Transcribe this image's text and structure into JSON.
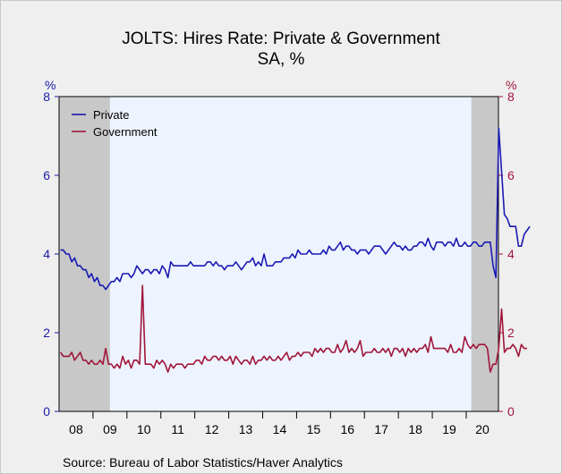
{
  "chart_data": {
    "type": "line",
    "title": "JOLTS: Hires Rate: Private & Government",
    "subtitle": "SA, %",
    "source": "Source:  Bureau of Labor Statistics/Haver Analytics",
    "ylabel_left": "%",
    "ylabel_right": "%",
    "ylim": [
      0,
      8
    ],
    "yticks": [
      "0",
      "2",
      "4",
      "6",
      "8"
    ],
    "x_tick_labels": [
      "08",
      "09",
      "10",
      "11",
      "12",
      "13",
      "14",
      "15",
      "16",
      "17",
      "18",
      "19",
      "20"
    ],
    "x_start_year": 2008,
    "x_end": 2020.95,
    "recessions": [
      [
        2008.0,
        2009.5
      ],
      [
        2020.15,
        2020.95
      ]
    ],
    "legend_position": "top-left",
    "colors": {
      "private": "#1a1ab4",
      "government": "#a0163a",
      "recession": "#c8c8c8",
      "plot_bg": "#eef4ff"
    },
    "series": [
      {
        "name": "Private",
        "color": "#1a1ab4",
        "values": [
          4.1,
          4.1,
          4.0,
          4.0,
          3.8,
          3.9,
          3.7,
          3.7,
          3.6,
          3.6,
          3.4,
          3.5,
          3.3,
          3.4,
          3.2,
          3.2,
          3.1,
          3.2,
          3.3,
          3.3,
          3.4,
          3.3,
          3.5,
          3.5,
          3.5,
          3.4,
          3.5,
          3.7,
          3.6,
          3.5,
          3.6,
          3.6,
          3.5,
          3.6,
          3.6,
          3.5,
          3.7,
          3.6,
          3.4,
          3.8,
          3.7,
          3.7,
          3.7,
          3.7,
          3.7,
          3.7,
          3.8,
          3.7,
          3.7,
          3.7,
          3.7,
          3.7,
          3.8,
          3.8,
          3.7,
          3.8,
          3.7,
          3.7,
          3.6,
          3.7,
          3.7,
          3.7,
          3.8,
          3.7,
          3.6,
          3.7,
          3.8,
          3.8,
          3.9,
          3.7,
          3.8,
          3.7,
          4.0,
          3.7,
          3.7,
          3.7,
          3.8,
          3.8,
          3.8,
          3.9,
          3.9,
          3.9,
          4.0,
          3.9,
          4.1,
          4.0,
          4.0,
          4.0,
          4.1,
          4.0,
          4.0,
          4.0,
          4.0,
          4.1,
          4.0,
          4.2,
          4.1,
          4.1,
          4.2,
          4.3,
          4.1,
          4.2,
          4.2,
          4.1,
          4.1,
          4.0,
          4.1,
          4.1,
          4.1,
          4.0,
          4.1,
          4.2,
          4.2,
          4.2,
          4.1,
          4.0,
          4.1,
          4.2,
          4.3,
          4.2,
          4.2,
          4.1,
          4.2,
          4.1,
          4.1,
          4.2,
          4.2,
          4.3,
          4.3,
          4.2,
          4.4,
          4.2,
          4.1,
          4.3,
          4.3,
          4.3,
          4.2,
          4.3,
          4.3,
          4.2,
          4.4,
          4.2,
          4.2,
          4.3,
          4.2,
          4.2,
          4.3,
          4.3,
          4.2,
          4.2,
          4.3,
          4.3,
          4.3,
          3.7,
          3.4,
          7.2,
          6.1,
          5.0,
          4.9,
          4.7,
          4.7,
          4.7,
          4.2,
          4.2,
          4.5,
          4.6,
          4.7
        ]
      },
      {
        "name": "Government",
        "color": "#a0163a",
        "values": [
          1.5,
          1.4,
          1.4,
          1.4,
          1.5,
          1.3,
          1.4,
          1.5,
          1.3,
          1.3,
          1.2,
          1.3,
          1.2,
          1.2,
          1.3,
          1.2,
          1.6,
          1.2,
          1.2,
          1.1,
          1.2,
          1.1,
          1.4,
          1.2,
          1.3,
          1.1,
          1.3,
          1.3,
          1.2,
          3.2,
          1.2,
          1.2,
          1.2,
          1.1,
          1.3,
          1.2,
          1.3,
          1.2,
          1.0,
          1.2,
          1.1,
          1.2,
          1.2,
          1.2,
          1.1,
          1.2,
          1.2,
          1.2,
          1.3,
          1.3,
          1.2,
          1.4,
          1.3,
          1.3,
          1.4,
          1.4,
          1.3,
          1.4,
          1.3,
          1.3,
          1.4,
          1.2,
          1.4,
          1.3,
          1.2,
          1.3,
          1.3,
          1.2,
          1.4,
          1.2,
          1.3,
          1.3,
          1.4,
          1.3,
          1.4,
          1.3,
          1.3,
          1.4,
          1.3,
          1.4,
          1.5,
          1.3,
          1.4,
          1.4,
          1.5,
          1.4,
          1.5,
          1.5,
          1.5,
          1.4,
          1.6,
          1.5,
          1.6,
          1.5,
          1.6,
          1.6,
          1.5,
          1.5,
          1.7,
          1.5,
          1.6,
          1.8,
          1.5,
          1.6,
          1.5,
          1.6,
          1.8,
          1.4,
          1.5,
          1.5,
          1.5,
          1.6,
          1.5,
          1.5,
          1.6,
          1.5,
          1.6,
          1.4,
          1.6,
          1.6,
          1.5,
          1.6,
          1.4,
          1.6,
          1.5,
          1.6,
          1.5,
          1.6,
          1.6,
          1.7,
          1.5,
          1.9,
          1.6,
          1.6,
          1.6,
          1.6,
          1.6,
          1.5,
          1.7,
          1.5,
          1.5,
          1.6,
          1.5,
          1.9,
          1.7,
          1.6,
          1.7,
          1.6,
          1.7,
          1.7,
          1.7,
          1.6,
          1.0,
          1.2,
          1.2,
          1.6,
          2.6,
          1.5,
          1.6,
          1.6,
          1.7,
          1.6,
          1.4,
          1.7,
          1.6,
          1.6
        ]
      }
    ]
  }
}
